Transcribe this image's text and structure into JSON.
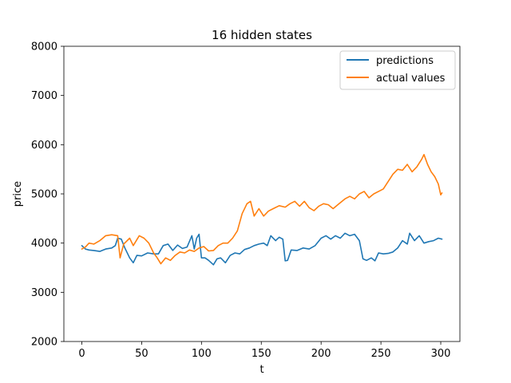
{
  "chart_data": {
    "type": "line",
    "title": "16 hidden states",
    "xlabel": "t",
    "ylabel": "price",
    "xlim": [
      -15,
      316
    ],
    "ylim": [
      2000,
      8000
    ],
    "x_ticks": [
      0,
      50,
      100,
      150,
      200,
      250,
      300
    ],
    "y_ticks": [
      2000,
      3000,
      4000,
      5000,
      6000,
      7000,
      8000
    ],
    "grid": false,
    "legend_position": "upper right",
    "series": [
      {
        "name": "predictions",
        "color": "#1f77b4",
        "points": [
          [
            0,
            3950
          ],
          [
            3,
            3880
          ],
          [
            6,
            3860
          ],
          [
            10,
            3850
          ],
          [
            15,
            3830
          ],
          [
            20,
            3880
          ],
          [
            25,
            3900
          ],
          [
            28,
            3950
          ],
          [
            30,
            4100
          ],
          [
            33,
            4080
          ],
          [
            36,
            3900
          ],
          [
            40,
            3700
          ],
          [
            43,
            3600
          ],
          [
            46,
            3750
          ],
          [
            50,
            3740
          ],
          [
            55,
            3800
          ],
          [
            60,
            3780
          ],
          [
            64,
            3780
          ],
          [
            68,
            3950
          ],
          [
            72,
            3980
          ],
          [
            76,
            3850
          ],
          [
            80,
            3960
          ],
          [
            84,
            3890
          ],
          [
            88,
            3920
          ],
          [
            92,
            4150
          ],
          [
            94,
            3880
          ],
          [
            96,
            4100
          ],
          [
            98,
            4180
          ],
          [
            100,
            3700
          ],
          [
            103,
            3700
          ],
          [
            106,
            3650
          ],
          [
            110,
            3560
          ],
          [
            113,
            3680
          ],
          [
            116,
            3700
          ],
          [
            120,
            3600
          ],
          [
            124,
            3750
          ],
          [
            128,
            3800
          ],
          [
            132,
            3780
          ],
          [
            136,
            3870
          ],
          [
            140,
            3900
          ],
          [
            144,
            3950
          ],
          [
            148,
            3980
          ],
          [
            152,
            4000
          ],
          [
            155,
            3950
          ],
          [
            158,
            4150
          ],
          [
            162,
            4050
          ],
          [
            165,
            4120
          ],
          [
            168,
            4080
          ],
          [
            170,
            3640
          ],
          [
            172,
            3650
          ],
          [
            175,
            3860
          ],
          [
            180,
            3850
          ],
          [
            185,
            3900
          ],
          [
            190,
            3880
          ],
          [
            195,
            3950
          ],
          [
            200,
            4100
          ],
          [
            204,
            4150
          ],
          [
            208,
            4080
          ],
          [
            212,
            4150
          ],
          [
            216,
            4100
          ],
          [
            220,
            4200
          ],
          [
            224,
            4150
          ],
          [
            228,
            4180
          ],
          [
            232,
            4050
          ],
          [
            235,
            3680
          ],
          [
            238,
            3650
          ],
          [
            242,
            3700
          ],
          [
            245,
            3640
          ],
          [
            248,
            3800
          ],
          [
            252,
            3780
          ],
          [
            256,
            3790
          ],
          [
            260,
            3820
          ],
          [
            264,
            3900
          ],
          [
            268,
            4050
          ],
          [
            272,
            3980
          ],
          [
            274,
            4200
          ],
          [
            278,
            4050
          ],
          [
            282,
            4150
          ],
          [
            286,
            4000
          ],
          [
            290,
            4030
          ],
          [
            294,
            4050
          ],
          [
            298,
            4100
          ],
          [
            301,
            4080
          ]
        ]
      },
      {
        "name": "actual values",
        "color": "#ff7f0e",
        "points": [
          [
            0,
            3880
          ],
          [
            3,
            3920
          ],
          [
            6,
            4000
          ],
          [
            10,
            3980
          ],
          [
            15,
            4050
          ],
          [
            20,
            4150
          ],
          [
            25,
            4170
          ],
          [
            30,
            4150
          ],
          [
            32,
            3700
          ],
          [
            35,
            3980
          ],
          [
            40,
            4100
          ],
          [
            43,
            3950
          ],
          [
            48,
            4150
          ],
          [
            52,
            4100
          ],
          [
            56,
            4000
          ],
          [
            60,
            3800
          ],
          [
            63,
            3700
          ],
          [
            66,
            3580
          ],
          [
            70,
            3700
          ],
          [
            74,
            3650
          ],
          [
            78,
            3750
          ],
          [
            82,
            3820
          ],
          [
            86,
            3800
          ],
          [
            90,
            3860
          ],
          [
            94,
            3830
          ],
          [
            98,
            3900
          ],
          [
            102,
            3930
          ],
          [
            106,
            3840
          ],
          [
            110,
            3850
          ],
          [
            114,
            3950
          ],
          [
            118,
            4000
          ],
          [
            122,
            4000
          ],
          [
            126,
            4100
          ],
          [
            130,
            4250
          ],
          [
            134,
            4600
          ],
          [
            138,
            4800
          ],
          [
            141,
            4850
          ],
          [
            144,
            4550
          ],
          [
            148,
            4700
          ],
          [
            152,
            4550
          ],
          [
            156,
            4650
          ],
          [
            160,
            4700
          ],
          [
            165,
            4760
          ],
          [
            170,
            4730
          ],
          [
            174,
            4800
          ],
          [
            178,
            4850
          ],
          [
            182,
            4750
          ],
          [
            186,
            4850
          ],
          [
            190,
            4720
          ],
          [
            194,
            4660
          ],
          [
            198,
            4750
          ],
          [
            202,
            4800
          ],
          [
            206,
            4780
          ],
          [
            210,
            4700
          ],
          [
            215,
            4800
          ],
          [
            220,
            4900
          ],
          [
            224,
            4950
          ],
          [
            228,
            4900
          ],
          [
            232,
            5000
          ],
          [
            236,
            5050
          ],
          [
            240,
            4920
          ],
          [
            244,
            5000
          ],
          [
            248,
            5050
          ],
          [
            252,
            5100
          ],
          [
            256,
            5250
          ],
          [
            260,
            5400
          ],
          [
            264,
            5500
          ],
          [
            268,
            5480
          ],
          [
            272,
            5600
          ],
          [
            276,
            5450
          ],
          [
            280,
            5550
          ],
          [
            284,
            5700
          ],
          [
            286,
            5800
          ],
          [
            289,
            5600
          ],
          [
            292,
            5450
          ],
          [
            295,
            5350
          ],
          [
            298,
            5200
          ],
          [
            300,
            4980
          ],
          [
            301,
            5020
          ]
        ]
      }
    ]
  }
}
